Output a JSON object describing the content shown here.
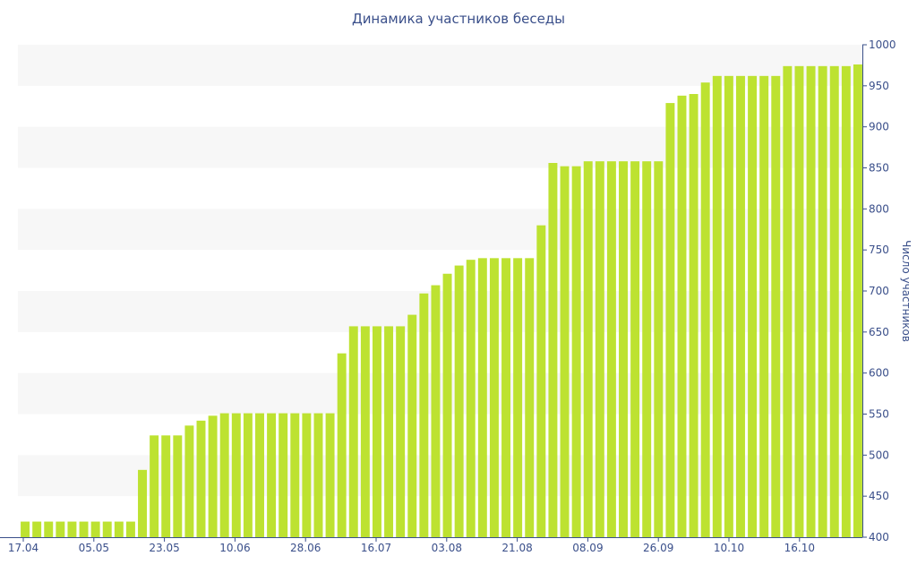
{
  "chart_data": {
    "type": "bar",
    "title": "Динамика участников беседы",
    "xlabel": "",
    "ylabel": "Число участников",
    "ylim": [
      400,
      1000
    ],
    "y_ticks": [
      400,
      450,
      500,
      550,
      600,
      650,
      700,
      750,
      800,
      850,
      900,
      950,
      1000
    ],
    "y_axis_side": "right",
    "x_tick_labels": [
      "17.04",
      "05.05",
      "23.05",
      "10.06",
      "28.06",
      "16.07",
      "03.08",
      "21.08",
      "08.09",
      "26.09",
      "10.10",
      "16.10"
    ],
    "bar_color": "#bde231",
    "band_color": "#f7f7f7",
    "axis_color": "#3a4f8a",
    "values": [
      419,
      419,
      419,
      419,
      419,
      419,
      419,
      419,
      419,
      419,
      482,
      524,
      524,
      524,
      536,
      542,
      548,
      551,
      551,
      551,
      551,
      551,
      551,
      551,
      551,
      551,
      551,
      624,
      657,
      657,
      657,
      657,
      657,
      671,
      697,
      707,
      721,
      731,
      738,
      740,
      740,
      740,
      740,
      740,
      780,
      856,
      852,
      852,
      858,
      858,
      858,
      858,
      858,
      858,
      858,
      929,
      938,
      940,
      954,
      962,
      962,
      962,
      962,
      962,
      962,
      974,
      974,
      974,
      974,
      974,
      974,
      976
    ]
  }
}
